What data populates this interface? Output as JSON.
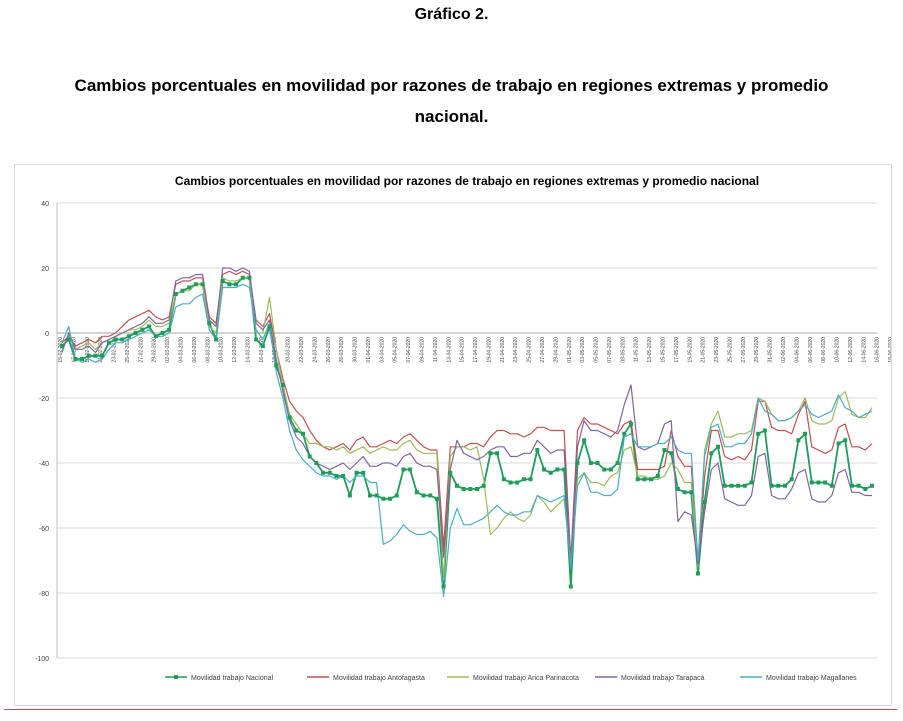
{
  "document": {
    "figure_label": "Gráfico 2.",
    "caption": "Cambios porcentuales en movilidad por razones de trabajo en regiones extremas y promedio nacional."
  },
  "chart_data": {
    "type": "line",
    "title": "Cambios porcentuales en movilidad por razones de trabajo en regiones extremas y promedio nacional",
    "xlabel": "",
    "ylabel": "",
    "ylim": [
      -100,
      40
    ],
    "yticks": [
      -100,
      -80,
      -60,
      -40,
      -20,
      0,
      20,
      40
    ],
    "grid": true,
    "legend_position": "bottom",
    "x_tick_labels": [
      "15-02-2020",
      "17-02-2020",
      "19-02-2020",
      "21-02-2020",
      "23-02-2020",
      "25-02-2020",
      "27-02-2020",
      "29-02-2020",
      "02-03-2020",
      "04-03-2020",
      "06-03-2020",
      "08-03-2020",
      "10-03-2020",
      "12-03-2020",
      "14-03-2020",
      "16-03-2020",
      "18-03-2020",
      "20-03-2020",
      "22-03-2020",
      "24-03-2020",
      "26-03-2020",
      "28-03-2020",
      "30-03-2020",
      "01-04-2020",
      "03-04-2020",
      "05-04-2020",
      "07-04-2020",
      "09-04-2020",
      "11-04-2020",
      "13-04-2020",
      "15-04-2020",
      "17-04-2020",
      "19-04-2020",
      "21-04-2020",
      "23-04-2020",
      "25-04-2020",
      "27-04-2020",
      "29-04-2020",
      "01-05-2020",
      "03-05-2020",
      "05-05-2020",
      "07-05-2020",
      "09-05-2020",
      "11-05-2020",
      "13-05-2020",
      "15-05-2020",
      "17-05-2020",
      "19-05-2020",
      "21-05-2020",
      "23-05-2020",
      "25-05-2020",
      "27-05-2020",
      "29-05-2020",
      "31-05-2020",
      "02-06-2020",
      "04-06-2020",
      "06-06-2020",
      "08-06-2020",
      "10-06-2020",
      "12-06-2020",
      "14-06-2020",
      "16-06-2020",
      "18-06-2020"
    ],
    "series": [
      {
        "name": "Movilidad trabajo Nacional",
        "color": "#1e9c5a",
        "markers": true,
        "values": [
          -4,
          -2,
          -8,
          -8,
          -7,
          -7,
          -7,
          -3,
          -2,
          -2,
          -1,
          0,
          1,
          2,
          -1,
          0,
          1,
          12,
          13,
          14,
          15,
          15,
          3,
          -2,
          16,
          15,
          15,
          17,
          17,
          -2,
          -4,
          2,
          -10,
          -16,
          -26,
          -30,
          -31,
          -38,
          -40,
          -43,
          -43,
          -44,
          -44,
          -50,
          -43,
          -43,
          -50,
          -50,
          -51,
          -51,
          -50,
          -42,
          -42,
          -49,
          -50,
          -50,
          -51,
          -78,
          -43,
          -47,
          -48,
          -48,
          -48,
          -47,
          -37,
          -37,
          -45,
          -46,
          -46,
          -45,
          -45,
          -36,
          -42,
          -43,
          -42,
          -42,
          -78,
          -40,
          -33,
          -40,
          -40,
          -42,
          -42,
          -40,
          -31,
          -28,
          -45,
          -45,
          -45,
          -44,
          -36,
          -37,
          -48,
          -49,
          -49,
          -74,
          -52,
          -37,
          -35,
          -47,
          -47,
          -47,
          -47,
          -46,
          -31,
          -30,
          -47,
          -47,
          -47,
          -45,
          -33,
          -31,
          -46,
          -46,
          -46,
          -47,
          -34,
          -33,
          -47,
          -47,
          -48,
          -47
        ]
      },
      {
        "name": "Movilidad trabajo Antofagasta",
        "color": "#c0504d",
        "markers": false,
        "values": [
          -3,
          -1,
          -4,
          -3,
          -2,
          -3,
          -1,
          -1,
          0,
          2,
          4,
          5,
          6,
          7,
          5,
          4,
          5,
          15,
          16,
          16,
          17,
          17,
          5,
          3,
          18,
          19,
          18,
          19,
          18,
          4,
          2,
          6,
          -5,
          -14,
          -21,
          -24,
          -26,
          -30,
          -33,
          -35,
          -36,
          -35,
          -34,
          -36,
          -33,
          -32,
          -35,
          -35,
          -34,
          -33,
          -34,
          -32,
          -31,
          -33,
          -35,
          -36,
          -36,
          -66,
          -35,
          -35,
          -35,
          -34,
          -34,
          -35,
          -32,
          -30,
          -30,
          -31,
          -31,
          -32,
          -31,
          -29,
          -29,
          -30,
          -30,
          -30,
          -70,
          -30,
          -26,
          -28,
          -28,
          -29,
          -30,
          -31,
          -28,
          -27,
          -42,
          -42,
          -42,
          -42,
          -41,
          -30,
          -38,
          -41,
          -41,
          -72,
          -44,
          -30,
          -30,
          -38,
          -39,
          -38,
          -39,
          -36,
          -21,
          -21,
          -29,
          -30,
          -30,
          -31,
          -25,
          -21,
          -35,
          -36,
          -37,
          -36,
          -29,
          -28,
          -35,
          -35,
          -36,
          -34
        ]
      },
      {
        "name": "Movilidad trabajo Arica Parinacota",
        "color": "#9bbb59",
        "markers": false,
        "values": [
          -5,
          -1,
          -5,
          -4,
          -3,
          -5,
          -3,
          -2,
          -1,
          0,
          1,
          1,
          2,
          4,
          2,
          2,
          3,
          12,
          13,
          13,
          15,
          15,
          2,
          0,
          17,
          16,
          16,
          17,
          17,
          0,
          0,
          11,
          -5,
          -16,
          -25,
          -28,
          -31,
          -34,
          -34,
          -35,
          -35,
          -36,
          -35,
          -37,
          -36,
          -35,
          -37,
          -36,
          -35,
          -36,
          -36,
          -34,
          -33,
          -36,
          -37,
          -37,
          -37,
          -76,
          -38,
          -35,
          -35,
          -36,
          -35,
          -45,
          -62,
          -60,
          -57,
          -55,
          -57,
          -58,
          -56,
          -50,
          -52,
          -55,
          -53,
          -51,
          -70,
          -45,
          -43,
          -46,
          -46,
          -47,
          -44,
          -43,
          -36,
          -35,
          -44,
          -44,
          -45,
          -45,
          -44,
          -40,
          -42,
          -46,
          -46,
          -72,
          -36,
          -28,
          -24,
          -32,
          -32,
          -31,
          -31,
          -30,
          -20,
          -21,
          -25,
          -27,
          -27,
          -26,
          -24,
          -20,
          -27,
          -28,
          -28,
          -27,
          -20,
          -18,
          -25,
          -26,
          -26,
          -23
        ]
      },
      {
        "name": "Movilidad trabajo Tarapacá",
        "color": "#8064a2",
        "markers": false,
        "values": [
          -6,
          0,
          -5,
          -5,
          -4,
          -6,
          -3,
          -2,
          -1,
          0,
          1,
          2,
          3,
          5,
          3,
          3,
          4,
          16,
          17,
          17,
          18,
          18,
          4,
          2,
          20,
          20,
          19,
          20,
          19,
          3,
          1,
          4,
          -8,
          -18,
          -27,
          -32,
          -34,
          -38,
          -40,
          -41,
          -42,
          -41,
          -40,
          -42,
          -40,
          -38,
          -41,
          -41,
          -40,
          -40,
          -41,
          -38,
          -37,
          -40,
          -41,
          -41,
          -42,
          -69,
          -42,
          -33,
          -37,
          -38,
          -39,
          -38,
          -36,
          -35,
          -35,
          -38,
          -38,
          -37,
          -37,
          -33,
          -35,
          -37,
          -36,
          -36,
          -72,
          -35,
          -27,
          -30,
          -30,
          -31,
          -32,
          -30,
          -22,
          -16,
          -35,
          -36,
          -35,
          -34,
          -28,
          -27,
          -58,
          -55,
          -56,
          -71,
          -55,
          -42,
          -40,
          -51,
          -52,
          -53,
          -53,
          -50,
          -38,
          -37,
          -50,
          -51,
          -51,
          -48,
          -43,
          -42,
          -51,
          -52,
          -52,
          -50,
          -43,
          -42,
          -49,
          -49,
          -50,
          -50
        ]
      },
      {
        "name": "Movilidad trabajo Magallanes",
        "color": "#4bacc6",
        "markers": false,
        "values": [
          -3,
          2,
          -8,
          -9,
          -8,
          -9,
          -8,
          -5,
          -3,
          -3,
          -2,
          -1,
          0,
          1,
          -1,
          -1,
          0,
          8,
          9,
          9,
          11,
          12,
          1,
          -2,
          14,
          14,
          14,
          15,
          14,
          1,
          -2,
          3,
          -12,
          -20,
          -30,
          -36,
          -39,
          -41,
          -43,
          -44,
          -44,
          -45,
          -44,
          -46,
          -44,
          -44,
          -46,
          -46,
          -65,
          -64,
          -62,
          -59,
          -61,
          -62,
          -62,
          -61,
          -63,
          -81,
          -60,
          -54,
          -59,
          -59,
          -58,
          -57,
          -55,
          -53,
          -55,
          -56,
          -56,
          -55,
          -55,
          -50,
          -51,
          -52,
          -51,
          -50,
          -72,
          -47,
          -43,
          -49,
          -49,
          -50,
          -50,
          -48,
          -32,
          -31,
          -35,
          -35,
          -35,
          -34,
          -34,
          -32,
          -36,
          -37,
          -37,
          -70,
          -38,
          -29,
          -28,
          -35,
          -35,
          -34,
          -34,
          -31,
          -20,
          -24,
          -25,
          -27,
          -27,
          -26,
          -24,
          -22,
          -25,
          -26,
          -25,
          -24,
          -19,
          -23,
          -24,
          -26,
          -25,
          -24
        ]
      }
    ]
  },
  "colors": {
    "gridline": "#d9d9d9",
    "axis": "#bfbfbf",
    "bottom_rule": "#c0504d"
  }
}
